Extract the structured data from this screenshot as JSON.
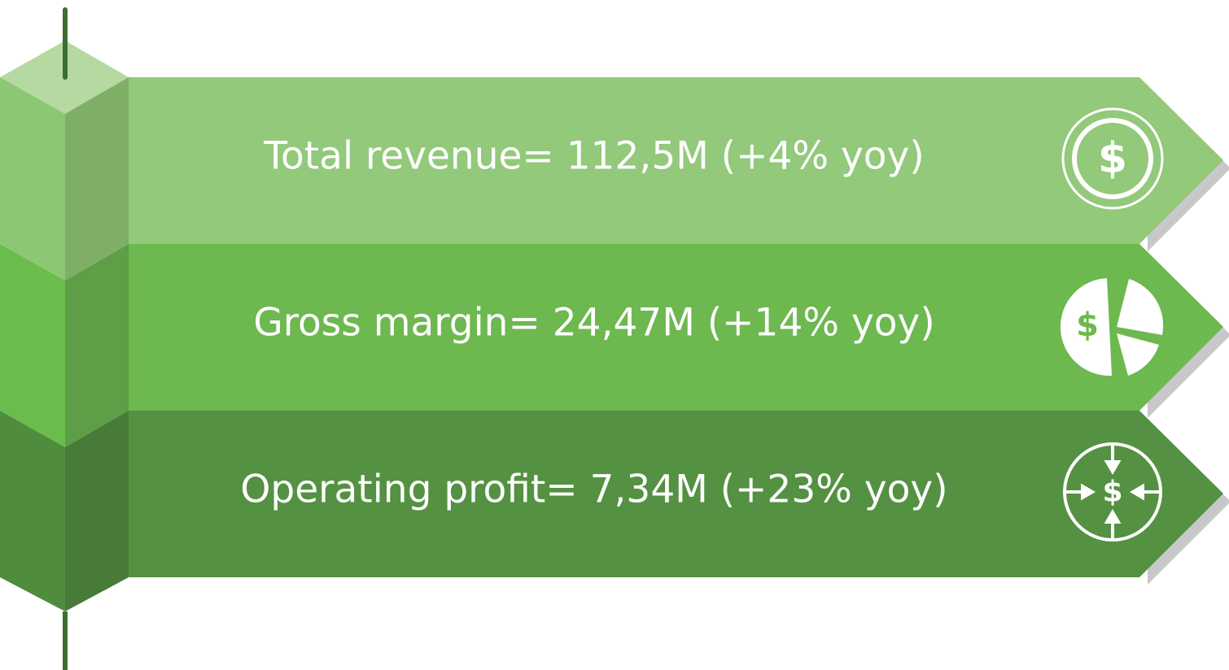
{
  "items": [
    {
      "label": "Total revenue= 112,5M (+4% yoy)",
      "icon_text": "$"
    },
    {
      "label": "Gross margin= 24,47M (+14% yoy)",
      "icon_text": "$"
    },
    {
      "label": "Operating profit= 7,34M (+23% yoy)",
      "icon_text": "$"
    }
  ]
}
